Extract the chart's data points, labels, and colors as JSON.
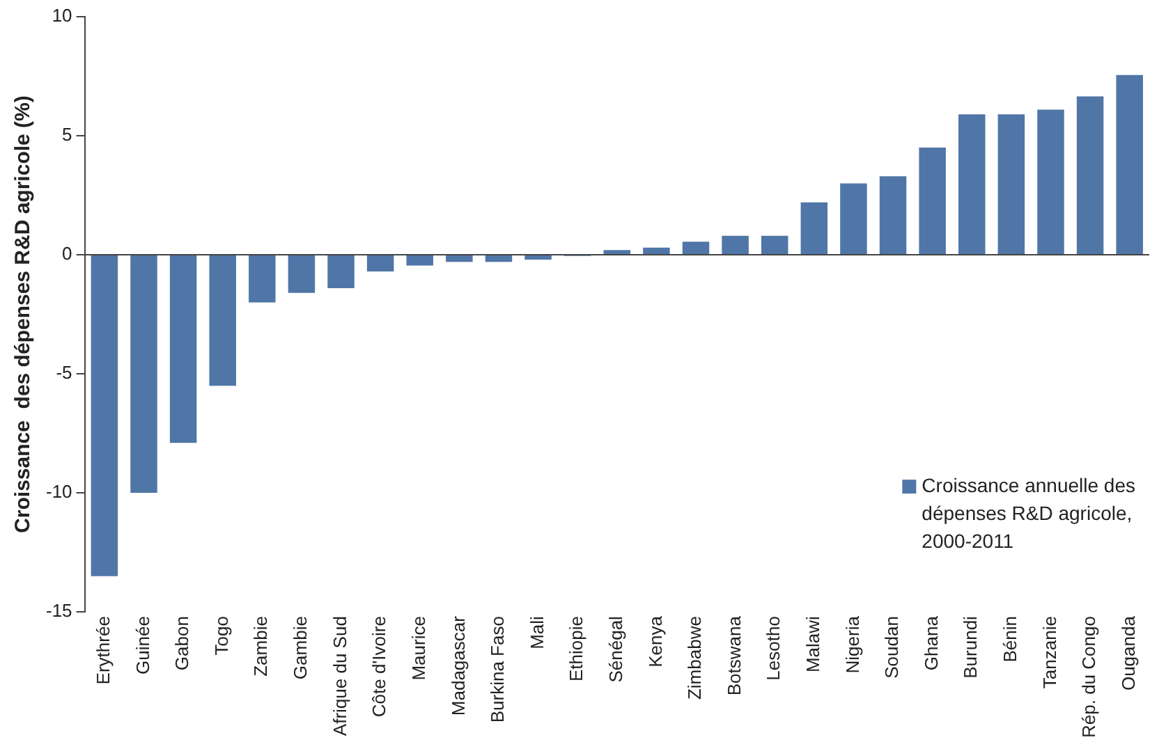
{
  "chart_data": {
    "type": "bar",
    "ylabel": "Croissance  des dépenses R&D agricole (%)",
    "categories": [
      "Erythrée",
      "Guinée",
      "Gabon",
      "Togo",
      "Zambie",
      "Gambie",
      "Afrique du Sud",
      "Côte d'Ivoire",
      "Maurice",
      "Madagascar",
      "Burkina Faso",
      "Mali",
      "Ethiopie",
      "Sénégal",
      "Kenya",
      "Zimbabwe",
      "Botswana",
      "Lesotho",
      "Malawi",
      "Nigeria",
      "Soudan",
      "Ghana",
      "Burundi",
      "Bénin",
      "Tanzanie",
      "Rép. du Congo",
      "Ouganda"
    ],
    "series": [
      {
        "name": "Croissance annuelle des dépenses R&D agricole, 2000-2011",
        "color": "#4f76a6",
        "values": [
          -13.5,
          -10,
          -7.9,
          -5.5,
          -2,
          -1.6,
          -1.4,
          -0.7,
          -0.45,
          -0.3,
          -0.3,
          -0.2,
          -0.05,
          0.2,
          0.3,
          0.55,
          0.8,
          0.8,
          2.2,
          3,
          3.3,
          4.5,
          5.9,
          5.9,
          6.1,
          6.65,
          7.55
        ]
      }
    ],
    "ylim": [
      -15,
      10
    ],
    "yticks": [
      -15,
      -10,
      -5,
      0,
      5,
      10
    ],
    "grid": false,
    "ref_lines": [
      {
        "axis": "y",
        "value": 0,
        "color": "#444444"
      }
    ],
    "legend": "bottom right"
  }
}
